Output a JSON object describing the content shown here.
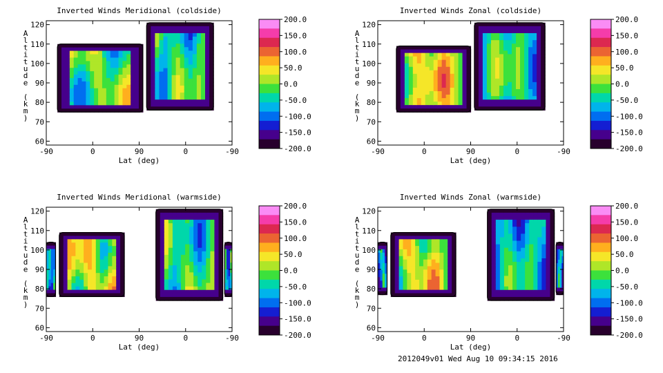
{
  "chart_data": [
    {
      "type": "heatmap",
      "title": "Inverted Winds Meridional (coldside)",
      "xlabel": "Lat (deg)",
      "ylabel": "Altitude (km)",
      "x_tick_labels": [
        "-90",
        "0",
        "90",
        "0",
        "-90"
      ],
      "y_ticks": [
        60,
        70,
        80,
        90,
        100,
        110,
        120
      ],
      "ylim": [
        58,
        122
      ],
      "colorbar": {
        "min": -200,
        "max": 200,
        "ticks": [
          "200.0",
          "150.0",
          "100.0",
          "50.0",
          "0.0",
          "-50.0",
          "-100.0",
          "-150.0",
          "-200.0"
        ]
      },
      "regions": [
        {
          "x_start": 0.06,
          "x_end": 0.52,
          "alt_min": 75,
          "alt_max": 110,
          "mean_value": -20,
          "feature": "minimum near lat 0 at 92 km"
        },
        {
          "x_start": 0.54,
          "x_end": 0.9,
          "alt_min": 76,
          "alt_max": 121,
          "mean_value": -40,
          "feature": "vertical banded structure"
        }
      ]
    },
    {
      "type": "heatmap",
      "title": "Inverted Winds Zonal (coldside)",
      "xlabel": "Lat (deg)",
      "ylabel": "Altitude (km)",
      "x_tick_labels": [
        "-90",
        "0",
        "90",
        "0",
        "-90"
      ],
      "y_ticks": [
        60,
        70,
        80,
        90,
        100,
        110,
        120
      ],
      "ylim": [
        58,
        122
      ],
      "colorbar": {
        "min": -200,
        "max": 200,
        "ticks": [
          "200.0",
          "150.0",
          "100.0",
          "50.0",
          "0.0",
          "-50.0",
          "-100.0",
          "-150.0",
          "-200.0"
        ]
      },
      "regions": [
        {
          "x_start": 0.1,
          "x_end": 0.5,
          "alt_min": 75,
          "alt_max": 109,
          "mean_value": 30,
          "feature": "maximum ~110 near 85 km"
        },
        {
          "x_start": 0.52,
          "x_end": 0.9,
          "alt_min": 76,
          "alt_max": 121,
          "mean_value": -40,
          "feature": "vertical banded structure"
        }
      ]
    },
    {
      "type": "heatmap",
      "title": "Inverted Winds Meridional (warmside)",
      "xlabel": "Lat (deg)",
      "ylabel": "Altitude (km)",
      "x_tick_labels": [
        "-90",
        "0",
        "90",
        "0",
        "-90"
      ],
      "y_ticks": [
        60,
        70,
        80,
        90,
        100,
        110,
        120
      ],
      "ylim": [
        58,
        122
      ],
      "colorbar": {
        "min": -200,
        "max": 200,
        "ticks": [
          "200.0",
          "150.0",
          "100.0",
          "50.0",
          "0.0",
          "-50.0",
          "-100.0",
          "-150.0",
          "-200.0"
        ]
      },
      "regions": [
        {
          "x_start": 0.0,
          "x_end": 0.05,
          "alt_min": 76,
          "alt_max": 104,
          "mean_value": -80,
          "feature": "edge strip"
        },
        {
          "x_start": 0.07,
          "x_end": 0.42,
          "alt_min": 76,
          "alt_max": 109,
          "mean_value": 15,
          "feature": "maximum ~75 near 97 km"
        },
        {
          "x_start": 0.59,
          "x_end": 0.95,
          "alt_min": 74,
          "alt_max": 121,
          "mean_value": -30,
          "feature": "vertical banded structure"
        },
        {
          "x_start": 0.96,
          "x_end": 1.0,
          "alt_min": 76,
          "alt_max": 104,
          "mean_value": -80,
          "feature": "edge strip"
        }
      ]
    },
    {
      "type": "heatmap",
      "title": "Inverted Winds Zonal (warmside)",
      "xlabel": "Lat (deg)",
      "ylabel": "Altitude (km)",
      "x_tick_labels": [
        "-90",
        "0",
        "90",
        "0",
        "-90"
      ],
      "y_ticks": [
        60,
        70,
        80,
        90,
        100,
        110,
        120
      ],
      "ylim": [
        58,
        122
      ],
      "colorbar": {
        "min": -200,
        "max": 200,
        "ticks": [
          "200.0",
          "150.0",
          "100.0",
          "50.0",
          "0.0",
          "-50.0",
          "-100.0",
          "-150.0",
          "-200.0"
        ]
      },
      "regions": [
        {
          "x_start": 0.0,
          "x_end": 0.05,
          "alt_min": 77,
          "alt_max": 104,
          "mean_value": -80,
          "feature": "edge strip"
        },
        {
          "x_start": 0.07,
          "x_end": 0.42,
          "alt_min": 76,
          "alt_max": 109,
          "mean_value": 20,
          "feature": "maximum ~75 near 101 km"
        },
        {
          "x_start": 0.59,
          "x_end": 0.95,
          "alt_min": 74,
          "alt_max": 121,
          "mean_value": -60,
          "feature": "vertical banded structure"
        },
        {
          "x_start": 0.96,
          "x_end": 1.0,
          "alt_min": 77,
          "alt_max": 104,
          "mean_value": -80,
          "feature": "edge strip"
        }
      ]
    }
  ],
  "footer": "2012049v01 Wed Aug 10 09:34:15 2016"
}
